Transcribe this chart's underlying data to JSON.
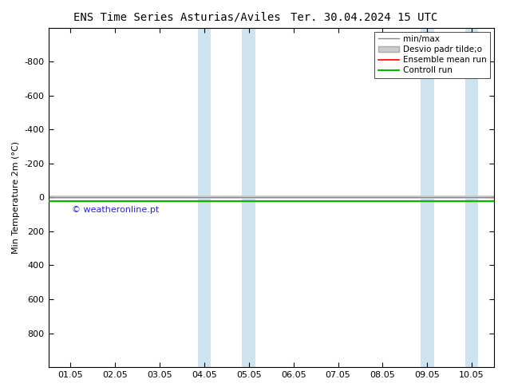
{
  "title_left": "ENS Time Series Asturias/Aviles",
  "title_right": "Ter. 30.04.2024 15 UTC",
  "ylabel": "Min Temperature 2m (°C)",
  "ylim_top": -1000,
  "ylim_bottom": 1000,
  "yticks": [
    -800,
    -600,
    -400,
    -200,
    0,
    200,
    400,
    600,
    800
  ],
  "xtick_labels": [
    "01.05",
    "02.05",
    "03.05",
    "04.05",
    "05.05",
    "06.05",
    "07.05",
    "08.05",
    "09.05",
    "10.05"
  ],
  "xtick_positions": [
    0,
    1,
    2,
    3,
    4,
    5,
    6,
    7,
    8,
    9
  ],
  "xlim": [
    0,
    9
  ],
  "shaded_regions": [
    [
      2.85,
      3.15
    ],
    [
      3.85,
      4.15
    ],
    [
      7.85,
      8.15
    ],
    [
      8.85,
      9.15
    ]
  ],
  "shade_color": "#cde3f0",
  "control_run_y": 20,
  "ensemble_mean_y": 20,
  "control_run_color": "#00bb00",
  "ensemble_mean_color": "#ff0000",
  "minmax_color": "#888888",
  "stddev_color": "#cccccc",
  "watermark": "© weatheronline.pt",
  "watermark_color": "#0000cc",
  "legend_labels": [
    "min/max",
    "Desvio padr tilde;o",
    "Ensemble mean run",
    "Controll run"
  ],
  "legend_colors": [
    "#888888",
    "#cccccc",
    "#ff0000",
    "#00bb00"
  ],
  "background_color": "#ffffff",
  "title_fontsize": 10,
  "axis_label_fontsize": 8,
  "tick_fontsize": 8,
  "legend_fontsize": 7.5
}
